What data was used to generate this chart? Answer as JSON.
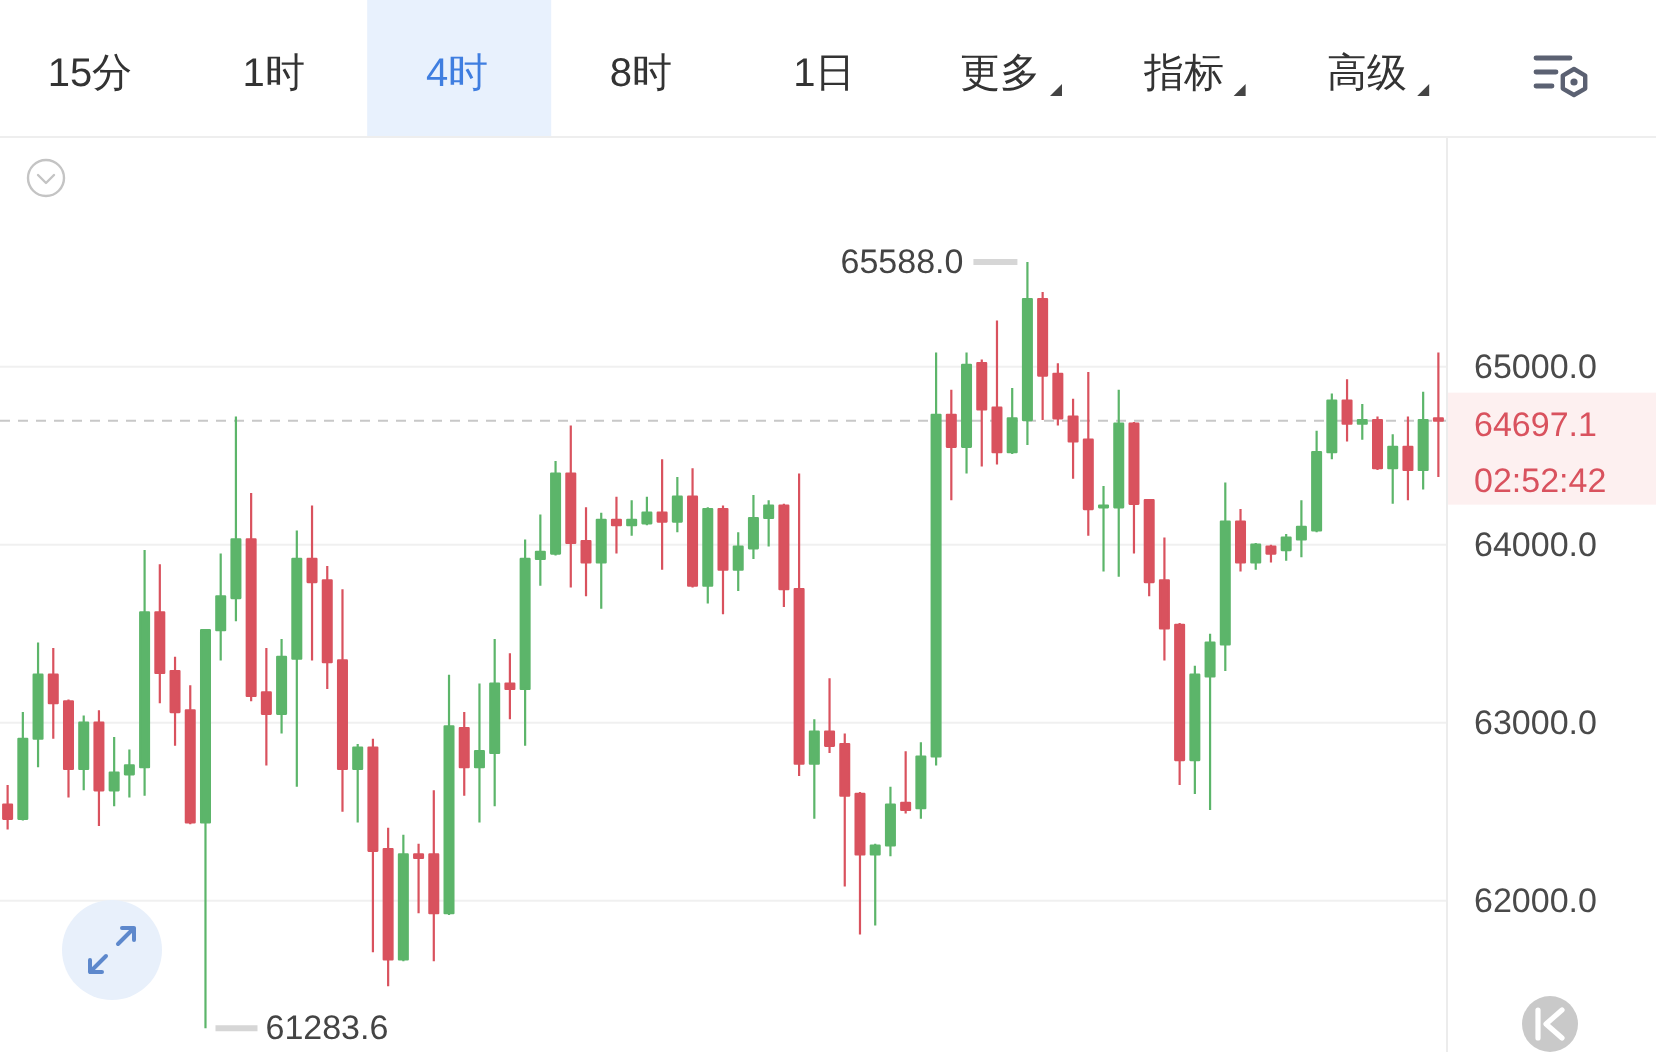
{
  "chart_data": {
    "type": "candlestick",
    "categories": [
      null,
      null,
      null,
      null,
      null,
      null,
      null,
      null,
      null,
      null,
      null,
      null,
      null,
      null,
      null,
      null,
      null,
      null,
      null,
      null,
      null,
      null,
      null,
      null,
      null,
      null,
      null,
      null,
      null,
      null,
      null,
      null,
      null,
      null,
      null,
      null,
      null,
      null,
      null,
      null,
      null,
      null,
      null,
      null,
      null,
      null,
      null,
      null,
      null,
      null,
      null,
      null,
      null,
      null,
      null,
      null,
      null,
      null,
      null,
      null,
      null,
      null,
      null,
      null,
      null,
      null,
      null,
      null,
      null,
      null,
      null,
      null,
      null,
      null,
      null,
      null,
      null,
      null,
      null,
      null,
      null,
      null,
      null,
      null,
      null,
      null,
      null,
      null,
      null,
      null,
      null,
      null,
      null,
      null,
      null
    ],
    "ohlc": [
      [
        62540,
        62650,
        62400,
        62460
      ],
      [
        62460,
        63060,
        62450,
        62910
      ],
      [
        62910,
        63450,
        62750,
        63270
      ],
      [
        63270,
        63420,
        62910,
        63110
      ],
      [
        63120,
        63130,
        62580,
        62740
      ],
      [
        62740,
        63040,
        62620,
        63000
      ],
      [
        63000,
        63070,
        62420,
        62620
      ],
      [
        62620,
        62920,
        62530,
        62720
      ],
      [
        62710,
        62850,
        62580,
        62760
      ],
      [
        62750,
        63970,
        62590,
        63620
      ],
      [
        63620,
        63890,
        63110,
        63280
      ],
      [
        63290,
        63370,
        62870,
        63060
      ],
      [
        63070,
        63210,
        62430,
        62440
      ],
      [
        62440,
        63520,
        61283.6,
        63520
      ],
      [
        63520,
        63950,
        63350,
        63710
      ],
      [
        63700,
        64720,
        63570,
        64030
      ],
      [
        64030,
        64290,
        63120,
        63150
      ],
      [
        63170,
        63420,
        62760,
        63050
      ],
      [
        63050,
        63470,
        62940,
        63370
      ],
      [
        63360,
        64080,
        62640,
        63920
      ],
      [
        63920,
        64220,
        63350,
        63790
      ],
      [
        63800,
        63880,
        63190,
        63340
      ],
      [
        63350,
        63750,
        62500,
        62740
      ],
      [
        62740,
        62880,
        62440,
        62860
      ],
      [
        62860,
        62910,
        61710,
        62280
      ],
      [
        62290,
        62410,
        61520,
        61670
      ],
      [
        61670,
        62370,
        61660,
        62260
      ],
      [
        62260,
        62320,
        61930,
        62240
      ],
      [
        62260,
        62620,
        61660,
        61930
      ],
      [
        61930,
        63270,
        61920,
        62980
      ],
      [
        62970,
        63060,
        62590,
        62750
      ],
      [
        62750,
        63220,
        62440,
        62840
      ],
      [
        62830,
        63470,
        62530,
        63220
      ],
      [
        63220,
        63390,
        63020,
        63190
      ],
      [
        63190,
        64030,
        62870,
        63920
      ],
      [
        63920,
        64170,
        63770,
        63960
      ],
      [
        63950,
        64470,
        63940,
        64400
      ],
      [
        64400,
        64670,
        63760,
        64010
      ],
      [
        64020,
        64210,
        63710,
        63900
      ],
      [
        63900,
        64180,
        63640,
        64140
      ],
      [
        64140,
        64270,
        63950,
        64110
      ],
      [
        64110,
        64250,
        64050,
        64140
      ],
      [
        64120,
        64270,
        64110,
        64180
      ],
      [
        64180,
        64480,
        63860,
        64130
      ],
      [
        64130,
        64380,
        64070,
        64270
      ],
      [
        64270,
        64430,
        63760,
        63770
      ],
      [
        63770,
        64210,
        63670,
        64200
      ],
      [
        64200,
        64220,
        63610,
        63860
      ],
      [
        63860,
        64070,
        63740,
        63990
      ],
      [
        63980,
        64280,
        63920,
        64150
      ],
      [
        64150,
        64250,
        63990,
        64220
      ],
      [
        64220,
        64230,
        63650,
        63750
      ],
      [
        63750,
        64400,
        62700,
        62770
      ],
      [
        62770,
        63020,
        62460,
        62950
      ],
      [
        62950,
        63250,
        62830,
        62870
      ],
      [
        62880,
        62940,
        62080,
        62590
      ],
      [
        62600,
        62610,
        61810,
        62260
      ],
      [
        62260,
        62320,
        61860,
        62310
      ],
      [
        62310,
        62640,
        62250,
        62540
      ],
      [
        62550,
        62840,
        62490,
        62510
      ],
      [
        62520,
        62890,
        62460,
        62810
      ],
      [
        62810,
        65080,
        62760,
        64730
      ],
      [
        64730,
        64870,
        64250,
        64550
      ],
      [
        64550,
        65080,
        64400,
        65010
      ],
      [
        65020,
        65040,
        64440,
        64760
      ],
      [
        64770,
        65260,
        64450,
        64520
      ],
      [
        64520,
        64880,
        64510,
        64710
      ],
      [
        64700,
        65588.0,
        64560,
        65380
      ],
      [
        65380,
        65420,
        64700,
        64950
      ],
      [
        64960,
        65020,
        64670,
        64710
      ],
      [
        64720,
        64820,
        64370,
        64580
      ],
      [
        64590,
        64970,
        64050,
        64200
      ],
      [
        64210,
        64330,
        63850,
        64220
      ],
      [
        64210,
        64870,
        63820,
        64680
      ],
      [
        64680,
        64690,
        63950,
        64230
      ],
      [
        64250,
        64250,
        63710,
        63790
      ],
      [
        63800,
        64040,
        63350,
        63530
      ],
      [
        63550,
        63560,
        62650,
        62790
      ],
      [
        62790,
        63320,
        62600,
        63270
      ],
      [
        63260,
        63500,
        62510,
        63450
      ],
      [
        63440,
        64350,
        63290,
        64130
      ],
      [
        64130,
        64200,
        63850,
        63900
      ],
      [
        63900,
        64010,
        63860,
        64000
      ],
      [
        63990,
        64000,
        63900,
        63950
      ],
      [
        63970,
        64060,
        63910,
        64040
      ],
      [
        64030,
        64250,
        63930,
        64100
      ],
      [
        64080,
        64640,
        64070,
        64520
      ],
      [
        64520,
        64850,
        64480,
        64810
      ],
      [
        64810,
        64930,
        64580,
        64680
      ],
      [
        64680,
        64790,
        64590,
        64700
      ],
      [
        64700,
        64720,
        64420,
        64430
      ],
      [
        64430,
        64620,
        64230,
        64550
      ],
      [
        64550,
        64720,
        64250,
        64420
      ],
      [
        64420,
        64860,
        64310,
        64700
      ],
      [
        64710,
        65080,
        64380,
        64697.1
      ]
    ],
    "colors": [
      "#d9525e",
      "#5cb56a",
      "#5cb56a",
      "#d9525e",
      "#d9525e",
      "#5cb56a",
      "#d9525e",
      "#5cb56a",
      "#5cb56a",
      "#5cb56a",
      "#d9525e",
      "#d9525e",
      "#d9525e",
      "#5cb56a",
      "#5cb56a",
      "#5cb56a",
      "#d9525e",
      "#d9525e",
      "#5cb56a",
      "#5cb56a",
      "#d9525e",
      "#d9525e",
      "#d9525e",
      "#5cb56a",
      "#d9525e",
      "#d9525e",
      "#5cb56a",
      "#d9525e",
      "#d9525e",
      "#5cb56a",
      "#d9525e",
      "#5cb56a",
      "#5cb56a",
      "#d9525e",
      "#5cb56a",
      "#5cb56a",
      "#5cb56a",
      "#d9525e",
      "#d9525e",
      "#5cb56a",
      "#d9525e",
      "#5cb56a",
      "#5cb56a",
      "#d9525e",
      "#5cb56a",
      "#d9525e",
      "#5cb56a",
      "#d9525e",
      "#5cb56a",
      "#5cb56a",
      "#5cb56a",
      "#d9525e",
      "#d9525e",
      "#5cb56a",
      "#d9525e",
      "#d9525e",
      "#d9525e",
      "#5cb56a",
      "#5cb56a",
      "#d9525e",
      "#5cb56a",
      "#5cb56a",
      "#d9525e",
      "#5cb56a",
      "#d9525e",
      "#d9525e",
      "#5cb56a",
      "#5cb56a",
      "#d9525e",
      "#d9525e",
      "#d9525e",
      "#d9525e",
      "#5cb56a",
      "#5cb56a",
      "#d9525e",
      "#d9525e",
      "#d9525e",
      "#d9525e",
      "#5cb56a",
      "#5cb56a",
      "#5cb56a",
      "#d9525e",
      "#5cb56a",
      "#d9525e",
      "#5cb56a",
      "#5cb56a",
      "#5cb56a",
      "#5cb56a",
      "#d9525e",
      "#5cb56a",
      "#d9525e",
      "#5cb56a",
      "#d9525e",
      "#5cb56a",
      "#d9525e"
    ],
    "ylim": [
      61150,
      66285
    ],
    "yticks": [
      {
        "value": 62000,
        "label": "62000.0"
      },
      {
        "value": 63000,
        "label": "63000.0"
      },
      {
        "value": 64000,
        "label": "64000.0"
      },
      {
        "value": 65000,
        "label": "65000.0"
      }
    ],
    "grid": "y",
    "tick_labels": "y",
    "ref_lines": [
      {
        "axis": "y",
        "value": 64697.1,
        "label": "64697.1",
        "line_style": "dashed",
        "color": "#c8c8c8"
      }
    ],
    "annotations": [
      "15分",
      "1时",
      "4时",
      "8时",
      "1日",
      "更多",
      "指标",
      "高级",
      "02:52:42",
      "65588.0",
      "61283.6"
    ]
  }
}
